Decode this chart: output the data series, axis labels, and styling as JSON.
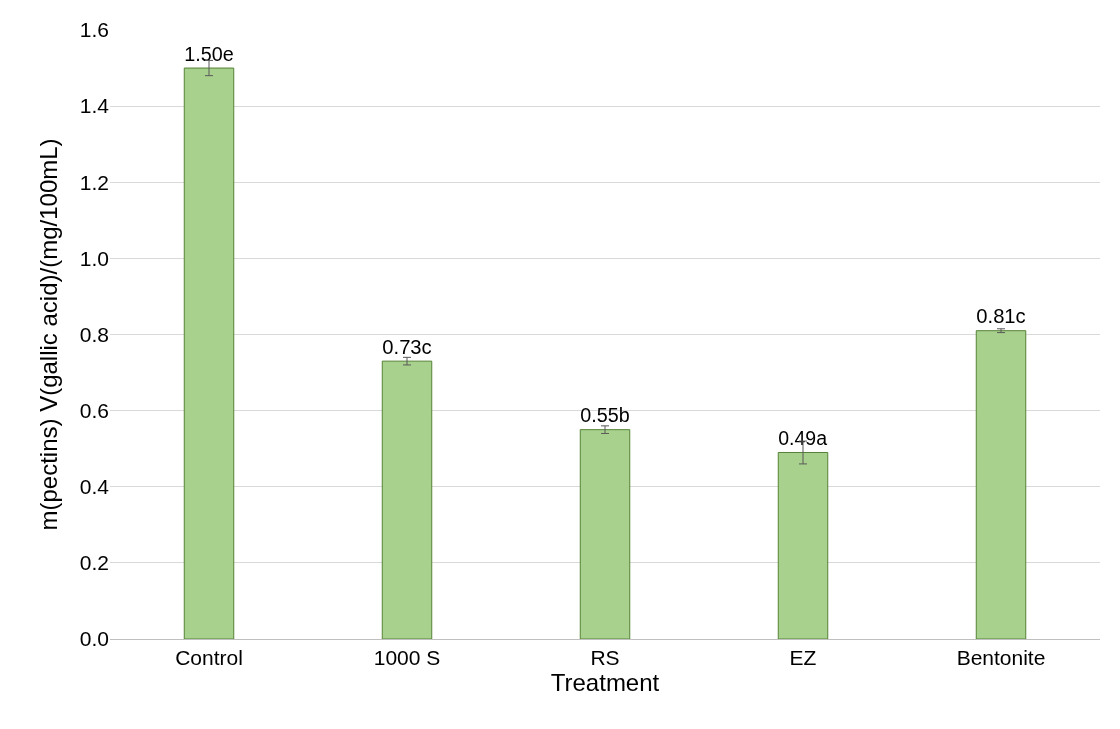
{
  "chart_data": {
    "type": "bar",
    "xlabel": "Treatment",
    "ylabel": "m(pectins) V(gallic acid)/(mg/100mL)",
    "categories": [
      "Control",
      "1000 S",
      "RS",
      "EZ",
      "Bentonite"
    ],
    "values": [
      1.5,
      0.73,
      0.55,
      0.49,
      0.81
    ],
    "errors": [
      0.02,
      0.01,
      0.01,
      0.03,
      0.005
    ],
    "value_labels": [
      "1.50e",
      "0.73c",
      "0.55b",
      "0.49a",
      "0.81c"
    ],
    "color": "#a9d18e",
    "ylim": [
      0,
      1.6
    ],
    "yticks": [
      {
        "value": 0,
        "label": "0.0"
      },
      {
        "value": 0.2,
        "label": "0.2"
      },
      {
        "value": 0.4,
        "label": "0.4"
      },
      {
        "value": 0.6,
        "label": "0.6"
      },
      {
        "value": 0.8,
        "label": "0.8"
      },
      {
        "value": 1.0,
        "label": "1.0"
      },
      {
        "value": 1.2,
        "label": "1.2"
      },
      {
        "value": 1.4,
        "label": "1.4"
      },
      {
        "value": 1.6,
        "label": "1.6"
      }
    ],
    "grid": "y",
    "legend": false
  }
}
